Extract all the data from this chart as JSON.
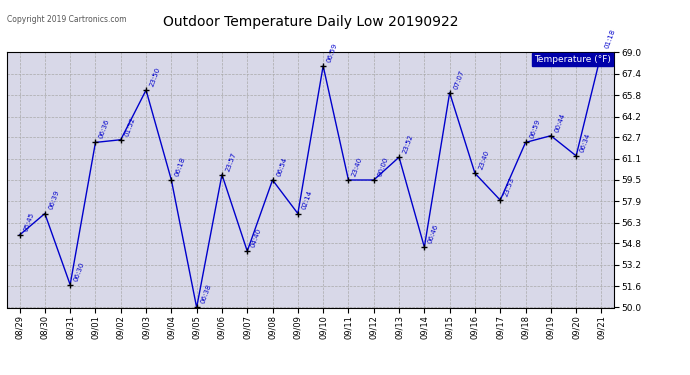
{
  "title": "Outdoor Temperature Daily Low 20190922",
  "copyright": "Copyright 2019 Cartronics.com",
  "legend_label": "Temperature (°F)",
  "x_labels": [
    "08/29",
    "08/30",
    "08/31",
    "09/01",
    "09/02",
    "09/03",
    "09/04",
    "09/05",
    "09/06",
    "09/07",
    "09/08",
    "09/09",
    "09/10",
    "09/11",
    "09/12",
    "09/13",
    "09/14",
    "09/15",
    "09/16",
    "09/17",
    "09/18",
    "09/19",
    "09/20",
    "09/21"
  ],
  "temperatures": [
    55.4,
    57.0,
    51.7,
    62.3,
    62.5,
    66.2,
    59.5,
    50.0,
    59.9,
    54.2,
    59.5,
    57.0,
    68.0,
    59.5,
    59.5,
    61.2,
    54.5,
    66.0,
    60.0,
    58.0,
    62.3,
    62.8,
    61.3,
    69.0
  ],
  "time_labels": [
    "05:45",
    "06:39",
    "06:30",
    "06:36",
    "01:52",
    "23:50",
    "06:18",
    "06:38",
    "23:57",
    "04:40",
    "06:54",
    "02:14",
    "06:59",
    "23:40",
    "00:00",
    "23:52",
    "06:46",
    "07:07",
    "23:40",
    "23:53",
    "06:59",
    "00:44",
    "06:34",
    "01:18"
  ],
  "ylim_min": 50.0,
  "ylim_max": 69.0,
  "yticks": [
    50.0,
    51.6,
    53.2,
    54.8,
    56.3,
    57.9,
    59.5,
    61.1,
    62.7,
    64.2,
    65.8,
    67.4,
    69.0
  ],
  "line_color": "#0000cc",
  "marker_color": "#000000",
  "bg_color": "#ffffff",
  "plot_bg_color": "#d8d8e8",
  "grid_color": "#aaaaaa",
  "label_color": "#0000cc",
  "title_color": "#000000",
  "legend_bg": "#0000aa",
  "legend_fg": "#ffffff"
}
